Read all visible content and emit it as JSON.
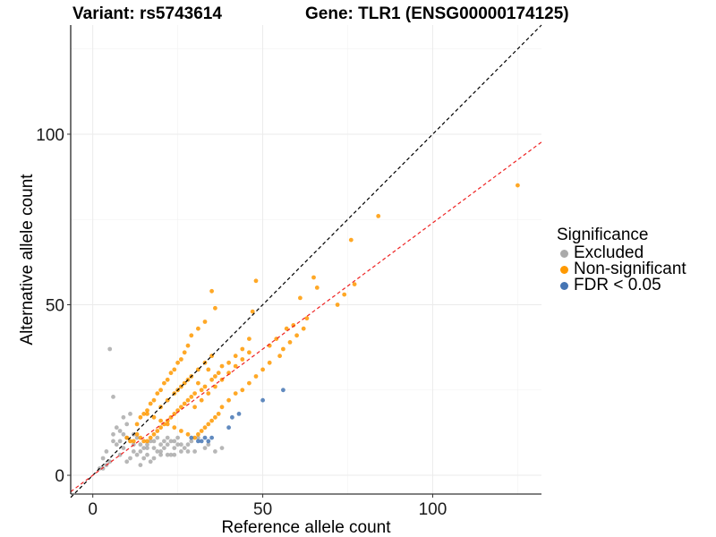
{
  "chart_data": {
    "type": "scatter",
    "title_left": "Variant: rs5743614",
    "title_right": "Gene: TLR1 (ENSG00000174125)",
    "xlabel": "Reference allele count",
    "ylabel": "Alternative allele count",
    "xlim": [
      -6.5,
      132
    ],
    "ylim": [
      -5.5,
      132
    ],
    "xticks": [
      0,
      50,
      100
    ],
    "yticks": [
      0,
      50,
      100
    ],
    "grid": true,
    "legend_title": "Significance",
    "legend_position": "right",
    "series": [
      {
        "name": "Excluded",
        "color": "#aaaaaa",
        "points": [
          [
            5,
            37
          ],
          [
            6,
            23
          ],
          [
            3,
            5
          ],
          [
            4,
            7
          ],
          [
            6,
            10
          ],
          [
            7,
            14
          ],
          [
            8,
            13
          ],
          [
            9,
            17
          ],
          [
            10,
            15
          ],
          [
            11,
            18
          ],
          [
            12,
            12
          ],
          [
            13,
            11
          ],
          [
            14,
            9
          ],
          [
            15,
            8
          ],
          [
            16,
            6
          ],
          [
            17,
            4
          ],
          [
            18,
            5
          ],
          [
            19,
            7
          ],
          [
            20,
            6
          ],
          [
            21,
            8
          ],
          [
            22,
            9
          ],
          [
            23,
            10
          ],
          [
            24,
            6
          ],
          [
            25,
            11
          ],
          [
            26,
            7
          ],
          [
            27,
            8
          ],
          [
            28,
            9
          ],
          [
            29,
            10
          ],
          [
            30,
            7
          ],
          [
            31,
            11
          ],
          [
            33,
            8
          ],
          [
            34,
            9
          ],
          [
            36,
            7
          ],
          [
            38,
            8
          ],
          [
            6,
            12
          ],
          [
            7,
            9
          ],
          [
            8,
            6
          ],
          [
            9,
            8
          ],
          [
            10,
            4
          ],
          [
            11,
            5
          ],
          [
            12,
            7
          ],
          [
            13,
            6
          ],
          [
            14,
            3
          ],
          [
            15,
            5
          ],
          [
            16,
            9
          ],
          [
            17,
            10
          ],
          [
            18,
            8
          ],
          [
            19,
            11
          ],
          [
            20,
            9
          ],
          [
            21,
            10
          ],
          [
            22,
            11
          ],
          [
            23,
            6
          ],
          [
            24,
            8
          ],
          [
            25,
            9
          ],
          [
            12,
            9
          ],
          [
            14,
            7
          ],
          [
            16,
            8
          ],
          [
            18,
            10
          ],
          [
            20,
            7
          ],
          [
            22,
            6
          ],
          [
            24,
            10
          ],
          [
            26,
            9
          ],
          [
            28,
            7
          ],
          [
            10,
            11
          ],
          [
            8,
            10
          ],
          [
            9,
            12
          ],
          [
            5,
            4
          ],
          [
            4,
            3
          ],
          [
            2,
            2
          ],
          [
            3,
            2
          ]
        ]
      },
      {
        "name": "Non-significant",
        "color": "#ff9900",
        "points": [
          [
            125,
            85
          ],
          [
            84,
            76
          ],
          [
            76,
            69
          ],
          [
            77,
            56
          ],
          [
            72,
            50
          ],
          [
            74,
            53
          ],
          [
            65,
            58
          ],
          [
            66,
            55
          ],
          [
            61,
            52
          ],
          [
            63,
            46
          ],
          [
            59,
            44
          ],
          [
            57,
            43
          ],
          [
            54,
            40
          ],
          [
            52,
            38
          ],
          [
            48,
            57
          ],
          [
            47,
            48
          ],
          [
            46,
            40
          ],
          [
            44,
            37
          ],
          [
            42,
            35
          ],
          [
            40,
            33
          ],
          [
            38,
            32
          ],
          [
            37,
            30
          ],
          [
            36,
            29
          ],
          [
            35,
            28
          ],
          [
            34,
            31
          ],
          [
            33,
            26
          ],
          [
            32,
            25
          ],
          [
            31,
            27
          ],
          [
            30,
            24
          ],
          [
            29,
            23
          ],
          [
            28,
            22
          ],
          [
            27,
            21
          ],
          [
            26,
            20
          ],
          [
            25,
            19
          ],
          [
            24,
            18
          ],
          [
            23,
            17
          ],
          [
            22,
            16
          ],
          [
            21,
            15
          ],
          [
            20,
            14
          ],
          [
            19,
            13
          ],
          [
            18,
            12
          ],
          [
            17,
            11
          ],
          [
            16,
            10
          ],
          [
            15,
            10
          ],
          [
            14,
            11
          ],
          [
            13,
            12
          ],
          [
            12,
            10
          ],
          [
            11,
            10
          ],
          [
            10,
            11
          ],
          [
            35,
            54
          ],
          [
            36,
            49
          ],
          [
            33,
            45
          ],
          [
            31,
            43
          ],
          [
            29,
            41
          ],
          [
            28,
            38
          ],
          [
            27,
            36
          ],
          [
            26,
            34
          ],
          [
            25,
            33
          ],
          [
            24,
            31
          ],
          [
            23,
            30
          ],
          [
            22,
            28
          ],
          [
            21,
            27
          ],
          [
            20,
            25
          ],
          [
            19,
            24
          ],
          [
            18,
            22
          ],
          [
            17,
            21
          ],
          [
            16,
            19
          ],
          [
            15,
            18
          ],
          [
            14,
            17
          ],
          [
            13,
            15
          ],
          [
            40,
            22
          ],
          [
            42,
            24
          ],
          [
            44,
            25
          ],
          [
            46,
            27
          ],
          [
            48,
            29
          ],
          [
            50,
            31
          ],
          [
            52,
            33
          ],
          [
            55,
            35
          ],
          [
            56,
            37
          ],
          [
            58,
            39
          ],
          [
            60,
            41
          ],
          [
            62,
            43
          ],
          [
            38,
            20
          ],
          [
            37,
            18
          ],
          [
            36,
            17
          ],
          [
            35,
            16
          ],
          [
            34,
            15
          ],
          [
            33,
            14
          ],
          [
            32,
            13
          ],
          [
            31,
            12
          ],
          [
            30,
            11
          ],
          [
            28,
            12
          ],
          [
            26,
            13
          ],
          [
            24,
            14
          ],
          [
            22,
            15
          ],
          [
            20,
            16
          ],
          [
            18,
            17
          ],
          [
            16,
            18
          ],
          [
            30,
            20
          ],
          [
            32,
            22
          ],
          [
            34,
            24
          ],
          [
            36,
            26
          ],
          [
            38,
            28
          ],
          [
            40,
            30
          ],
          [
            42,
            32
          ],
          [
            44,
            34
          ],
          [
            46,
            36
          ],
          [
            25,
            25
          ],
          [
            27,
            27
          ],
          [
            29,
            29
          ],
          [
            31,
            31
          ],
          [
            33,
            33
          ],
          [
            35,
            35
          ],
          [
            20,
            20
          ],
          [
            22,
            22
          ],
          [
            24,
            24
          ],
          [
            26,
            26
          ],
          [
            28,
            28
          ]
        ]
      },
      {
        "name": "FDR < 0.05",
        "color": "#4575b4",
        "points": [
          [
            56,
            25
          ],
          [
            50,
            22
          ],
          [
            43,
            18
          ],
          [
            41,
            17
          ],
          [
            40,
            14
          ],
          [
            34,
            10
          ],
          [
            35,
            11
          ],
          [
            33,
            11
          ],
          [
            32,
            10
          ],
          [
            31,
            10
          ],
          [
            29,
            11
          ]
        ]
      }
    ]
  }
}
